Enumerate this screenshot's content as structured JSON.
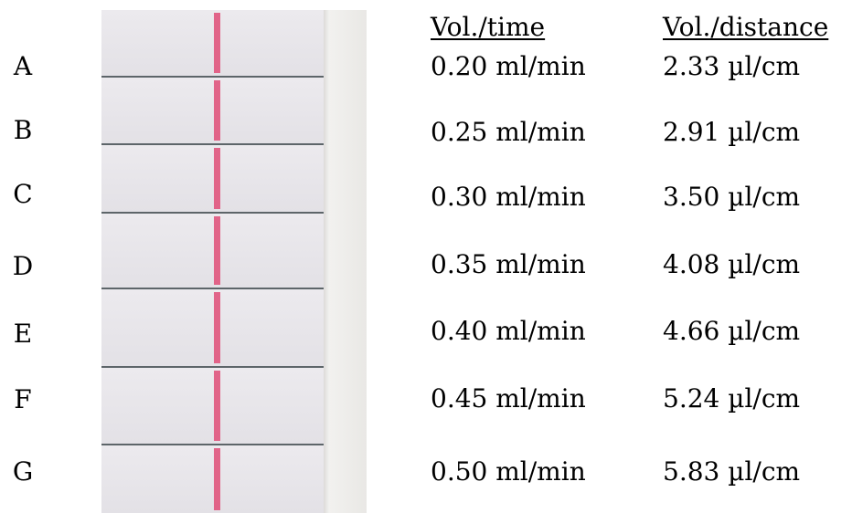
{
  "headers": {
    "vol_time": "Vol./time",
    "vol_distance": "Vol./distance"
  },
  "rows": [
    {
      "label": "A",
      "vol_time": "0.20 ml/min",
      "vol_distance": "2.33 µl/cm"
    },
    {
      "label": "B",
      "vol_time": "0.25 ml/min",
      "vol_distance": "2.91 µl/cm"
    },
    {
      "label": "C",
      "vol_time": "0.30 ml/min",
      "vol_distance": "3.50 µl/cm"
    },
    {
      "label": "D",
      "vol_time": "0.35 ml/min",
      "vol_distance": "4.08 µl/cm"
    },
    {
      "label": "E",
      "vol_time": "0.40 ml/min",
      "vol_distance": "4.66 µl/cm"
    },
    {
      "label": "F",
      "vol_time": "0.45 ml/min",
      "vol_distance": "5.24 µl/cm"
    },
    {
      "label": "G",
      "vol_time": "0.50 ml/min",
      "vol_distance": "5.83 µl/cm"
    }
  ],
  "colors": {
    "band": "#e0557d",
    "strip": "#e6e5e8",
    "divider": "#5d6569"
  }
}
